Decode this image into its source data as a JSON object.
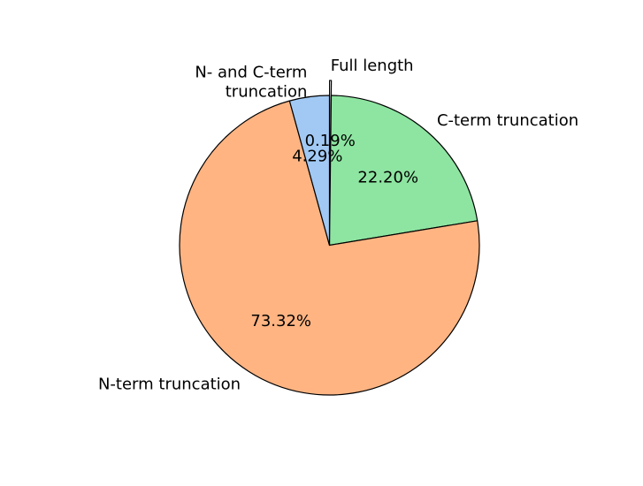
{
  "chart_data": {
    "type": "pie",
    "slices": [
      {
        "label": "Full length",
        "value": 0.19,
        "pct_label": "0.19%",
        "color": "#ffffff",
        "exploded": true
      },
      {
        "label": "C-term truncation",
        "value": 22.2,
        "pct_label": "22.20%",
        "color": "#8de5a1",
        "exploded": false
      },
      {
        "label": "N-term truncation",
        "value": 73.32,
        "pct_label": "73.32%",
        "color": "#ffb482",
        "exploded": false
      },
      {
        "label": "N- and C-term\ntruncation",
        "value": 4.29,
        "pct_label": "4.29%",
        "color": "#a1c9f4",
        "exploded": false
      }
    ],
    "start_angle_deg": 90,
    "direction": "clockwise"
  }
}
